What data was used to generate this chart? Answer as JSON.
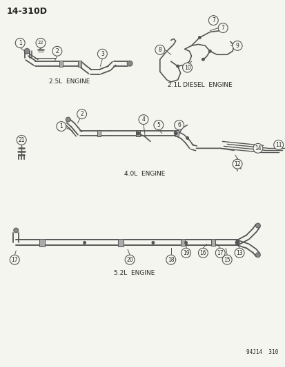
{
  "title": "14-310D",
  "background_color": "#f5f5f0",
  "line_color": "#555555",
  "text_color": "#222222",
  "labels": {
    "diagram1": "2.5L  ENGINE",
    "diagram2": "2.1L DIESEL  ENGINE",
    "diagram3": "4.0L  ENGINE",
    "diagram4": "5.2L  ENGINE",
    "footer": "94J14  310"
  },
  "figsize": [
    4.14,
    5.33
  ],
  "dpi": 100
}
